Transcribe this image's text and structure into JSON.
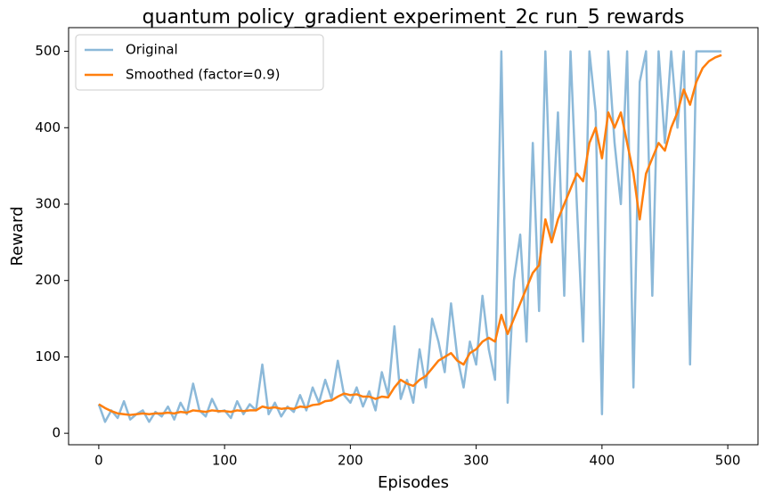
{
  "chart_data": {
    "type": "line",
    "title": "quantum policy_gradient experiment_2c run_5 rewards",
    "xlabel": "Episodes",
    "ylabel": "Reward",
    "x": [
      0,
      5,
      10,
      15,
      20,
      25,
      30,
      35,
      40,
      45,
      50,
      55,
      60,
      65,
      70,
      75,
      80,
      85,
      90,
      95,
      100,
      105,
      110,
      115,
      120,
      125,
      130,
      135,
      140,
      145,
      150,
      155,
      160,
      165,
      170,
      175,
      180,
      185,
      190,
      195,
      200,
      205,
      210,
      215,
      220,
      225,
      230,
      235,
      240,
      245,
      250,
      255,
      260,
      265,
      270,
      275,
      280,
      285,
      290,
      295,
      300,
      305,
      310,
      315,
      320,
      325,
      330,
      335,
      340,
      345,
      350,
      355,
      360,
      365,
      370,
      375,
      380,
      385,
      390,
      395,
      400,
      405,
      410,
      415,
      420,
      425,
      430,
      435,
      440,
      445,
      450,
      455,
      460,
      465,
      470,
      475,
      480,
      485,
      490,
      495
    ],
    "series": [
      {
        "name": "Original",
        "color": "#8cb9d9",
        "width": 2.5,
        "values": [
          38,
          15,
          30,
          20,
          42,
          18,
          25,
          30,
          15,
          28,
          22,
          35,
          18,
          40,
          25,
          65,
          30,
          22,
          45,
          28,
          30,
          20,
          42,
          25,
          38,
          30,
          90,
          25,
          40,
          22,
          35,
          28,
          50,
          30,
          60,
          40,
          70,
          45,
          95,
          50,
          40,
          60,
          35,
          55,
          30,
          80,
          50,
          140,
          45,
          70,
          40,
          110,
          60,
          150,
          120,
          80,
          170,
          100,
          60,
          120,
          90,
          180,
          110,
          70,
          500,
          40,
          200,
          260,
          120,
          380,
          160,
          500,
          250,
          420,
          180,
          500,
          300,
          120,
          500,
          420,
          25,
          500,
          380,
          300,
          500,
          60,
          460,
          500,
          180,
          500,
          380,
          500,
          400,
          500,
          90,
          500,
          500,
          500,
          500,
          500
        ]
      },
      {
        "name": "Smoothed (factor=0.9)",
        "color": "#ff7f0e",
        "width": 2.5,
        "values": [
          38,
          33,
          29,
          26,
          25,
          24,
          25,
          26,
          25,
          26,
          26,
          27,
          26,
          28,
          27,
          30,
          29,
          28,
          30,
          29,
          29,
          28,
          30,
          29,
          30,
          30,
          35,
          33,
          34,
          32,
          33,
          32,
          35,
          34,
          37,
          38,
          42,
          43,
          48,
          52,
          50,
          51,
          48,
          48,
          45,
          48,
          47,
          60,
          70,
          65,
          62,
          70,
          75,
          85,
          95,
          100,
          105,
          95,
          90,
          105,
          110,
          120,
          125,
          120,
          155,
          130,
          150,
          170,
          190,
          210,
          220,
          280,
          250,
          280,
          300,
          320,
          340,
          330,
          380,
          400,
          360,
          420,
          400,
          420,
          380,
          340,
          280,
          340,
          360,
          380,
          370,
          400,
          420,
          450,
          430,
          460,
          478,
          487,
          492,
          495
        ]
      }
    ],
    "xlim": [
      -24,
      524
    ],
    "ylim": [
      -15,
      531
    ],
    "xticks": [
      0,
      100,
      200,
      300,
      400,
      500
    ],
    "yticks": [
      0,
      100,
      200,
      300,
      400,
      500
    ],
    "legend": "upper left"
  }
}
